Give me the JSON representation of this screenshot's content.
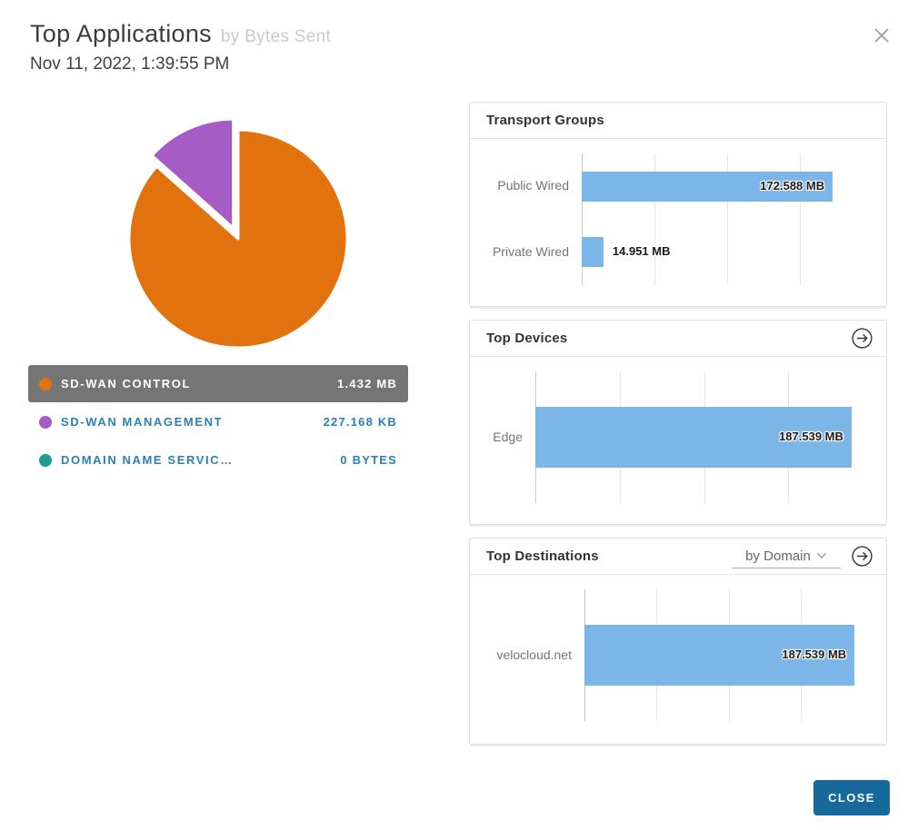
{
  "dialog": {
    "title": "Top Applications",
    "subtitle": "by Bytes Sent",
    "timestamp": "Nov 11, 2022, 1:39:55 PM",
    "close_button_label": "CLOSE"
  },
  "icons": {
    "close": "close-icon (x glyph)",
    "panel_open": "arrow-right-in-circle-icon",
    "select_chevron": "chevron-down-icon"
  },
  "colors": {
    "slice_orange": "#e2720e",
    "slice_purple": "#a55cc5",
    "slice_teal": "#1d9e8f",
    "bar_blue": "#7cb5e8",
    "selected_row_gray": "#757575",
    "legend_link_blue": "#2d80b4",
    "close_button_blue": "#16699a"
  },
  "chart_data": [
    {
      "type": "pie",
      "title": "Top Applications",
      "subtitle": "by Bytes Sent",
      "legend_position": "below",
      "slices": [
        {
          "label": "SD-WAN CONTROL",
          "value_display": "1.432 MB",
          "value_kb": 1466.368,
          "color": "#e2720e",
          "selected": true,
          "exploded": false
        },
        {
          "label": "SD-WAN MANAGEMENT",
          "value_display": "227.168 KB",
          "value_kb": 227.168,
          "color": "#a55cc5",
          "selected": false,
          "exploded": true
        },
        {
          "label": "DOMAIN NAME SERVIC…",
          "value_display": "0 BYTES",
          "value_kb": 0,
          "color": "#1d9e8f",
          "selected": false,
          "exploded": false
        }
      ]
    },
    {
      "type": "bar",
      "title": "Transport Groups",
      "orientation": "horizontal",
      "grid": true,
      "categories": [
        "Public Wired",
        "Private Wired"
      ],
      "values_mb": [
        172.588,
        14.951
      ],
      "value_labels": [
        "172.588 MB",
        "14.951 MB"
      ],
      "axis_max_mb": 200,
      "gridline_step_mb": 50,
      "bar_color": "#7cb5e8"
    },
    {
      "type": "bar",
      "title": "Top Devices",
      "orientation": "horizontal",
      "grid": true,
      "categories": [
        "Edge"
      ],
      "values_mb": [
        187.539
      ],
      "value_labels": [
        "187.539 MB"
      ],
      "axis_max_mb": 200,
      "gridline_step_mb": 50,
      "bar_color": "#7cb5e8",
      "has_open_arrow": true
    },
    {
      "type": "bar",
      "title": "Top Destinations",
      "orientation": "horizontal",
      "grid": true,
      "categories": [
        "velocloud.net"
      ],
      "values_mb": [
        187.539
      ],
      "value_labels": [
        "187.539 MB"
      ],
      "axis_max_mb": 200,
      "gridline_step_mb": 50,
      "bar_color": "#7cb5e8",
      "has_open_arrow": true,
      "filter_selected": "by Domain"
    }
  ]
}
